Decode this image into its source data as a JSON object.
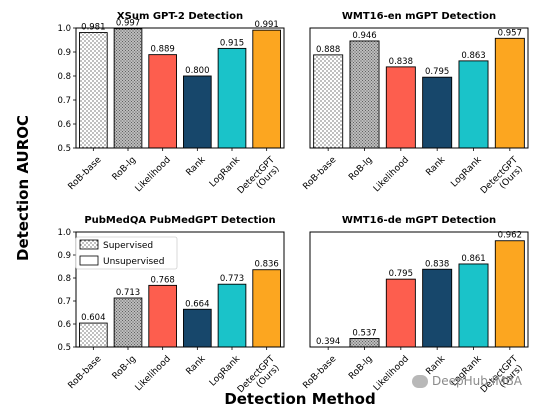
{
  "figure": {
    "ylabel": "Detection AUROC",
    "xlabel": "Detection Method",
    "watermark": "DeepHub IMBA"
  },
  "legend": {
    "items": [
      {
        "label": "Supervised",
        "style": "dotted"
      },
      {
        "label": "Unsupervised",
        "style": "plain"
      }
    ]
  },
  "colors": {
    "likelihood": "#fd5e4e",
    "rank": "#17476b",
    "logrank": "#1ac3c9",
    "detectgpt": "#fca620",
    "rob_base": "#ffffff",
    "rob_lg": "#bdbdbd"
  },
  "chart_data": [
    {
      "type": "bar",
      "title": "XSum GPT-2 Detection",
      "categories": [
        "RoB-base",
        "RoB-lg",
        "Likelihood",
        "Rank",
        "LogRank",
        "DetectGPT\n(Ours)"
      ],
      "values": [
        0.981,
        0.997,
        0.889,
        0.8,
        0.915,
        0.991
      ],
      "value_labels": [
        "0.981",
        "0.997",
        "0.889",
        "0.800",
        "0.915",
        "0.991"
      ],
      "ylim": [
        0.5,
        1.0
      ],
      "yticks": [
        "0.5",
        "0.6",
        "0.7",
        "0.8",
        "0.9",
        "1.0"
      ],
      "xlabel": "",
      "ylabel": ""
    },
    {
      "type": "bar",
      "title": "WMT16-en mGPT Detection",
      "categories": [
        "RoB-base",
        "RoB-lg",
        "Likelihood",
        "Rank",
        "LogRank",
        "DetectGPT\n(Ours)"
      ],
      "values": [
        0.888,
        0.946,
        0.838,
        0.795,
        0.863,
        0.957
      ],
      "value_labels": [
        "0.888",
        "0.946",
        "0.838",
        "0.795",
        "0.863",
        "0.957"
      ],
      "ylim": [
        0.5,
        1.0
      ],
      "yticks": [],
      "xlabel": "",
      "ylabel": ""
    },
    {
      "type": "bar",
      "title": "PubMedQA PubMedGPT Detection",
      "categories": [
        "RoB-base",
        "RoB-lg",
        "Likelihood",
        "Rank",
        "LogRank",
        "DetectGPT\n(Ours)"
      ],
      "values": [
        0.604,
        0.713,
        0.768,
        0.664,
        0.773,
        0.836
      ],
      "value_labels": [
        "0.604",
        "0.713",
        "0.768",
        "0.664",
        "0.773",
        "0.836"
      ],
      "ylim": [
        0.5,
        1.0
      ],
      "yticks": [
        "0.5",
        "0.6",
        "0.7",
        "0.8",
        "0.9",
        "1.0"
      ],
      "xlabel": "",
      "ylabel": ""
    },
    {
      "type": "bar",
      "title": "WMT16-de mGPT Detection",
      "categories": [
        "RoB-base",
        "RoB-lg",
        "Likelihood",
        "Rank",
        "LogRank",
        "DetectGPT\n(Ours)"
      ],
      "values": [
        0.394,
        0.537,
        0.795,
        0.838,
        0.861,
        0.962
      ],
      "value_labels": [
        "0.394",
        "0.537",
        "0.795",
        "0.838",
        "0.861",
        "0.962"
      ],
      "ylim": [
        0.5,
        1.0
      ],
      "yticks": [],
      "xlabel": "",
      "ylabel": ""
    }
  ]
}
